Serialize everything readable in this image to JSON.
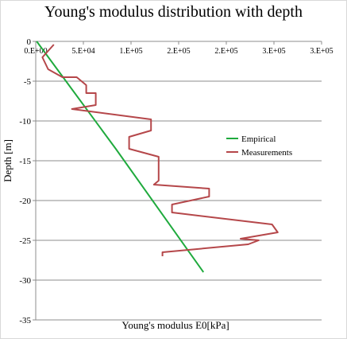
{
  "chart_data": {
    "type": "line",
    "title": "Young's modulus distribution with depth",
    "xlabel": "Young's modulus E0[kPa]",
    "ylabel": "Depth [m]",
    "xlim": [
      0,
      300000
    ],
    "ylim": [
      -35,
      0
    ],
    "x_axis_position": "top",
    "x_tick_values": [
      0,
      50000,
      100000,
      150000,
      200000,
      250000,
      300000
    ],
    "x_tick_labels": [
      "0.E+00",
      "5.E+04",
      "1.E+05",
      "2.E+05",
      "2.E+05",
      "3.E+05",
      "3.E+05"
    ],
    "y_ticks": [
      0,
      -5,
      -10,
      -15,
      -20,
      -25,
      -30,
      -35
    ],
    "grid": "horizontal",
    "legend_position": "right",
    "series": [
      {
        "name": "Empirical",
        "color": "#1faa3d",
        "x": [
          1000,
          84000,
          176000
        ],
        "y": [
          0,
          -13.5,
          -29
        ]
      },
      {
        "name": "Measurements",
        "color": "#b5474a",
        "x": [
          19000,
          7000,
          13000,
          28000,
          43000,
          53000,
          53000,
          63000,
          63000,
          38000,
          121000,
          121000,
          98000,
          98000,
          129000,
          129000,
          124000,
          182000,
          182000,
          143000,
          143000,
          248000,
          254000,
          215000,
          234000,
          223000,
          133000,
          133000
        ],
        "y": [
          -0.4,
          -2.0,
          -3.5,
          -4.5,
          -4.5,
          -5.5,
          -6.5,
          -6.5,
          -8.0,
          -8.5,
          -9.8,
          -11.2,
          -12.0,
          -13.5,
          -14.5,
          -17.5,
          -18.0,
          -18.5,
          -19.5,
          -20.5,
          -21.5,
          -23.0,
          -24.0,
          -24.8,
          -25.0,
          -25.5,
          -26.5,
          -27.0
        ]
      }
    ]
  }
}
